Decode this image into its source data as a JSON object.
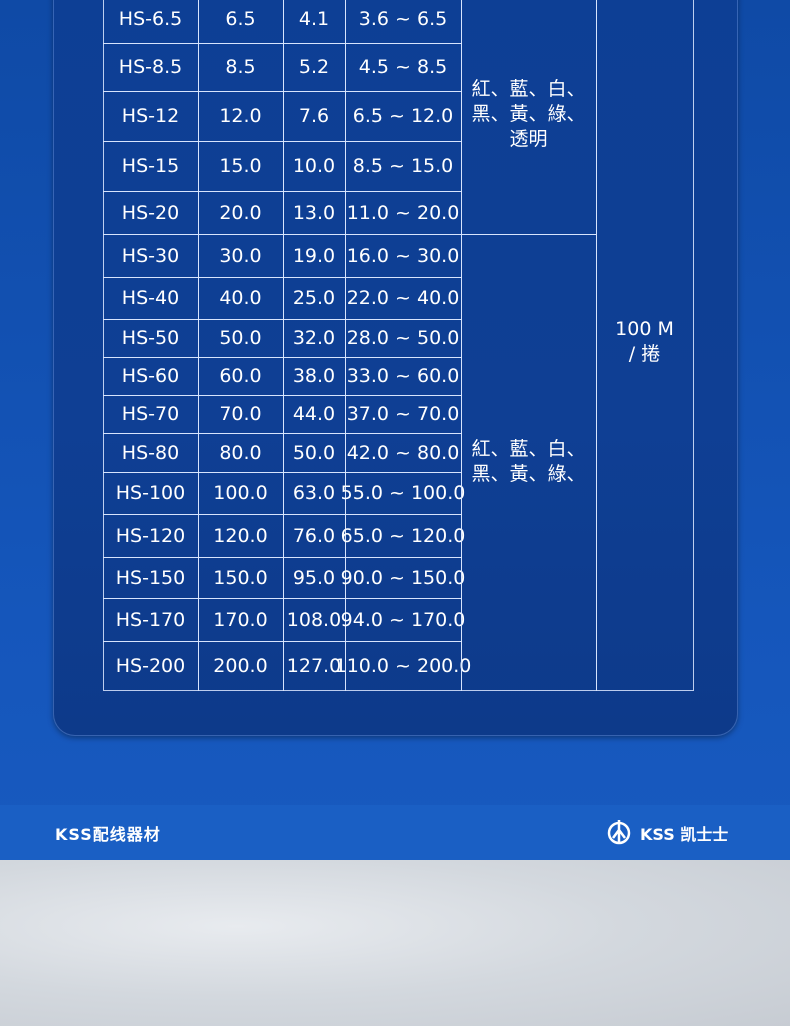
{
  "table": {
    "rows": [
      [
        "HS-6.5",
        "6.5",
        "4.1",
        "3.6 ~ 6.5"
      ],
      [
        "HS-8.5",
        "8.5",
        "5.2",
        "4.5 ~ 8.5"
      ],
      [
        "HS-12",
        "12.0",
        "7.6",
        "6.5 ~ 12.0"
      ],
      [
        "HS-15",
        "15.0",
        "10.0",
        "8.5 ~ 15.0"
      ],
      [
        "HS-20",
        "20.0",
        "13.0",
        "11.0 ~ 20.0"
      ],
      [
        "HS-30",
        "30.0",
        "19.0",
        "16.0 ~ 30.0"
      ],
      [
        "HS-40",
        "40.0",
        "25.0",
        "22.0 ~ 40.0"
      ],
      [
        "HS-50",
        "50.0",
        "32.0",
        "28.0 ~ 50.0"
      ],
      [
        "HS-60",
        "60.0",
        "38.0",
        "33.0 ~ 60.0"
      ],
      [
        "HS-70",
        "70.0",
        "44.0",
        "37.0 ~ 70.0"
      ],
      [
        "HS-80",
        "80.0",
        "50.0",
        "42.0 ~ 80.0"
      ],
      [
        "HS-100",
        "100.0",
        "63.0",
        "55.0 ~ 100.0"
      ],
      [
        "HS-120",
        "120.0",
        "76.0",
        "65.0 ~ 120.0"
      ],
      [
        "HS-150",
        "150.0",
        "95.0",
        "90.0 ~ 150.0"
      ],
      [
        "HS-170",
        "170.0",
        "108.0",
        "94.0 ~ 170.0"
      ],
      [
        "HS-200",
        "200.0",
        "127.0",
        "110.0 ~ 200.0"
      ]
    ],
    "colors": [
      "紅、藍、白、黑、黃、綠、透明",
      "紅、藍、白、黑、黃、綠、"
    ],
    "package": "100 M / 捲"
  },
  "footer": {
    "left": "KSS配线器材",
    "brand": "KSS 凯士士"
  }
}
